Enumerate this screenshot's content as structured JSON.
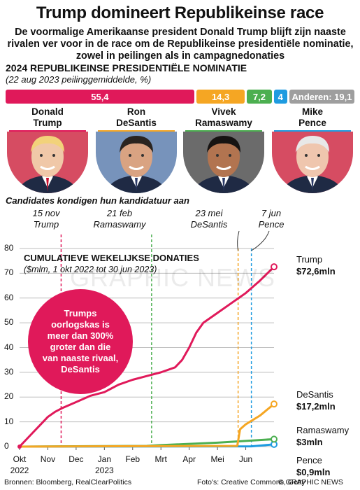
{
  "title": "Trump domineert Republikeinse race",
  "subtitle": "De voormalige Amerikaanse president Donald Trump blijft zijn naaste rivalen ver voor in de race om de Republikeinse presidentiële nominatie, zowel in peilingen als in campagnedonaties",
  "poll": {
    "title": "2024 REPUBLIKEINSE PRESIDENTIËLE NOMINATIE",
    "subtitle": "(22 aug 2023 peilinggemiddelde, %)",
    "segments": [
      {
        "label": "55,4",
        "value": 55.4,
        "color": "#e0195a"
      },
      {
        "label": "14,3",
        "value": 14.3,
        "color": "#f5a623"
      },
      {
        "label": "7,2",
        "value": 7.2,
        "color": "#4caf50"
      },
      {
        "label": "4",
        "value": 4.0,
        "color": "#1e9be0"
      },
      {
        "label": "Anderen: 19,1",
        "value": 19.1,
        "color": "#9e9e9e"
      }
    ]
  },
  "candidates": [
    {
      "name": "Donald\nTrump",
      "color": "#e0195a",
      "icon": "trump-photo"
    },
    {
      "name": "Ron\nDeSantis",
      "color": "#f5a623",
      "icon": "desantis-photo"
    },
    {
      "name": "Vivek\nRamaswamy",
      "color": "#4caf50",
      "icon": "ramaswamy-photo"
    },
    {
      "name": "Mike\nPence",
      "color": "#1e9be0",
      "icon": "pence-photo"
    }
  ],
  "announcements": {
    "title": "Candidates kondigen hun kandidatuur aan",
    "items": [
      {
        "date": "15 nov",
        "name": "Trump",
        "color": "#e0195a"
      },
      {
        "date": "21 feb",
        "name": "Ramaswamy",
        "color": "#4caf50"
      },
      {
        "date": "23 mei",
        "name": "DeSantis",
        "color": "#f5a623"
      },
      {
        "date": "7 jun",
        "name": "Pence",
        "color": "#1e9be0"
      }
    ]
  },
  "callout": "Trumps oorlogskas is meer dan 300% groter dan die van naaste rivaal, DeSantis",
  "watermark": "GRAPHIC NEWS",
  "footer": {
    "left": "Bronnen: Bloomberg, RealClearPolitics",
    "mid": "Foto's: Creative Commons, Getty",
    "right": "© GRAPHIC NEWS"
  },
  "chart_data": {
    "type": "line",
    "title": "CUMULATIEVE WEKELIJKSE DONATIES",
    "subtitle": "($mlm, 1 okt 2022 tot 30 jun 2023)",
    "ylim": [
      0,
      80
    ],
    "yticks": [
      0,
      10,
      20,
      30,
      40,
      50,
      60,
      70,
      80
    ],
    "xlim": [
      0,
      9
    ],
    "xticks": [
      {
        "label": "Okt\n2022",
        "x": 0
      },
      {
        "label": "Nov",
        "x": 1
      },
      {
        "label": "Dec",
        "x": 2
      },
      {
        "label": "Jan\n2023",
        "x": 3
      },
      {
        "label": "Feb",
        "x": 4
      },
      {
        "label": "Mrt",
        "x": 5
      },
      {
        "label": "Apr",
        "x": 6
      },
      {
        "label": "Mei",
        "x": 7
      },
      {
        "label": "Jun",
        "x": 8
      }
    ],
    "grid": true,
    "announce_x": [
      1.47,
      4.67,
      7.73,
      8.2
    ],
    "series": [
      {
        "name": "Trump",
        "label": "$72,6mln",
        "color": "#e0195a",
        "x": [
          0,
          0.25,
          0.5,
          0.75,
          1.0,
          1.25,
          1.5,
          2.0,
          2.5,
          3.0,
          3.25,
          3.5,
          4.0,
          4.5,
          5.0,
          5.5,
          5.75,
          6.0,
          6.25,
          6.5,
          7.0,
          7.5,
          7.75,
          8.0,
          8.5,
          9.0
        ],
        "y": [
          0,
          3,
          6,
          9,
          12,
          14,
          15.5,
          18,
          20.5,
          22,
          23.5,
          25,
          27,
          28.5,
          30,
          32,
          35,
          40,
          46,
          50,
          54,
          58,
          60,
          62,
          67,
          72.6
        ]
      },
      {
        "name": "DeSantis",
        "label": "$17,2mln",
        "color": "#f5a623",
        "x": [
          0,
          7.7,
          7.8,
          8.0,
          8.5,
          9.0
        ],
        "y": [
          0,
          0.3,
          7,
          9,
          12.5,
          17.2
        ]
      },
      {
        "name": "Ramaswamy",
        "label": "$3mln",
        "color": "#4caf50",
        "x": [
          0,
          4.5,
          5.0,
          6.0,
          7.0,
          8.0,
          9.0
        ],
        "y": [
          0,
          0.3,
          0.6,
          1.1,
          1.6,
          2.3,
          3.0
        ]
      },
      {
        "name": "Pence",
        "label": "$0,9mln",
        "color": "#1e9be0",
        "x": [
          0,
          8.2,
          8.5,
          9.0
        ],
        "y": [
          0,
          0.1,
          0.4,
          0.9
        ]
      }
    ]
  }
}
